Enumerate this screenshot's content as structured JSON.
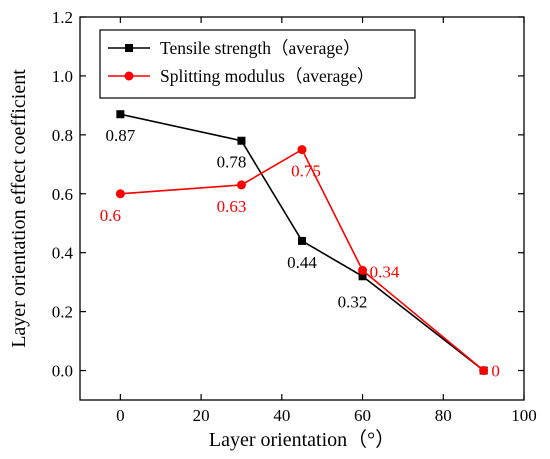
{
  "chart_data": {
    "type": "line",
    "xlabel": "Layer orientation（°）",
    "ylabel": "Layer orientation effect coefficient",
    "xlim": [
      -10,
      100
    ],
    "ylim": [
      -0.1,
      1.2
    ],
    "x_ticks": [
      0,
      20,
      40,
      60,
      80,
      100
    ],
    "y_ticks": [
      0.0,
      0.2,
      0.4,
      0.6,
      0.8,
      1.0,
      1.2
    ],
    "x_tick_labels": [
      "0",
      "20",
      "40",
      "60",
      "80",
      "100"
    ],
    "y_tick_labels": [
      "0.0",
      "0.2",
      "0.4",
      "0.6",
      "0.8",
      "1.0",
      "1.2"
    ],
    "grid": false,
    "legend_position": "top-center",
    "series": [
      {
        "name": "Tensile strength（average）",
        "color": "#000000",
        "marker": "square",
        "x": [
          0,
          30,
          45,
          60,
          90
        ],
        "y": [
          0.87,
          0.78,
          0.44,
          0.32,
          0
        ],
        "labels": [
          "0.87",
          "0.78",
          "0.44",
          "0.32",
          ""
        ]
      },
      {
        "name": "Splitting modulus（average）",
        "color": "#ff0000",
        "marker": "circle",
        "x": [
          0,
          30,
          45,
          60,
          90
        ],
        "y": [
          0.6,
          0.63,
          0.75,
          0.34,
          0
        ],
        "labels": [
          "0.6",
          "0.63",
          "0.75",
          "0.34",
          "0"
        ]
      }
    ]
  }
}
